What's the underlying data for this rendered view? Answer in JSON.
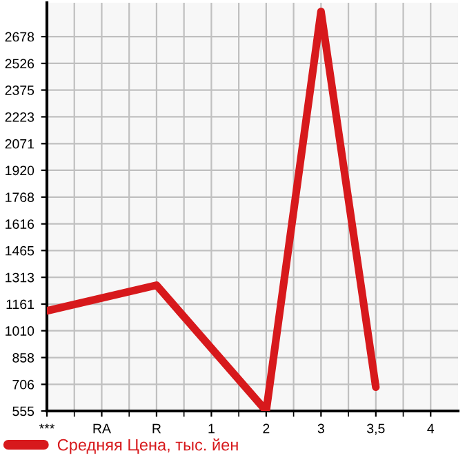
{
  "chart_data": {
    "type": "line",
    "categories": [
      "***",
      "RA",
      "R",
      "1",
      "2",
      "3",
      "3,5",
      "4"
    ],
    "series": [
      {
        "name": "Средняя Цена, тыс. йен",
        "color": "#d7191c",
        "values": [
          1123,
          null,
          1268,
          null,
          555,
          2820,
          690,
          null
        ]
      }
    ],
    "ylim": [
      555,
      2870
    ],
    "yticks": [
      555,
      706,
      858,
      1010,
      1161,
      1313,
      1465,
      1616,
      1768,
      1920,
      2071,
      2223,
      2375,
      2526,
      2678
    ],
    "grid": true,
    "legend": "bottom left",
    "marker": "none",
    "line_style": "solid"
  }
}
